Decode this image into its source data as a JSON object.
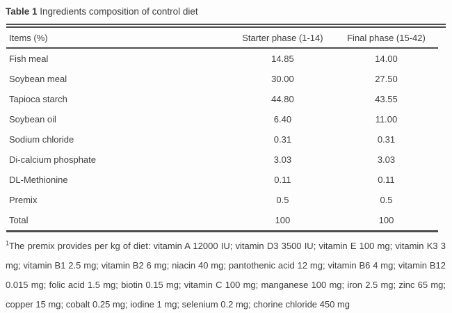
{
  "title": {
    "label": "Table 1",
    "text": " Ingredients composition of control diet"
  },
  "table": {
    "columns": {
      "items": "Items (%)",
      "starter": "Starter phase (1-14)",
      "final": "Final phase (15-42)"
    },
    "rows": [
      {
        "item": "Fish meal",
        "starter": "14.85",
        "final": "14.00"
      },
      {
        "item": "Soybean meal",
        "starter": "30.00",
        "final": "27.50"
      },
      {
        "item": "Tapioca starch",
        "starter": "44.80",
        "final": "43.55"
      },
      {
        "item": "Soybean oil",
        "starter": "6.40",
        "final": "11.00"
      },
      {
        "item": "Sodium chloride",
        "starter": "0.31",
        "final": "0.31"
      },
      {
        "item": "Di-calcium phosphate",
        "starter": "3.03",
        "final": "3.03"
      },
      {
        "item": "DL-Methionine",
        "starter": "0.11",
        "final": "0.11"
      },
      {
        "item": "Premix",
        "starter": "0.5",
        "final": "0.5"
      },
      {
        "item": "Total",
        "starter": "100",
        "final": "100"
      }
    ]
  },
  "footnote": {
    "marker": "1",
    "text": "The premix provides per kg of diet: vitamin A 12000 IU; vitamin D3 3500 IU; vitamin E 100 mg; vitamin K3 3 mg; vitamin B1 2.5 mg; vitamin B2 6 mg; niacin 40 mg; pantothenic acid 12 mg; vitamin B6 4 mg; vitamin B12 0.015 mg; folic acid 1.5 mg; biotin 0.15 mg; vitamin C 100 mg; manganese 100 mg; iron 2.5 mg; zinc 65 mg; copper 15 mg; cobalt 0.25 mg; iodine 1 mg; selenium 0.2 mg; chorine chloride 450 mg"
  },
  "colors": {
    "text": "#3e3e3e",
    "rule": "#4d4d4d",
    "background": "#fdfdfd"
  }
}
